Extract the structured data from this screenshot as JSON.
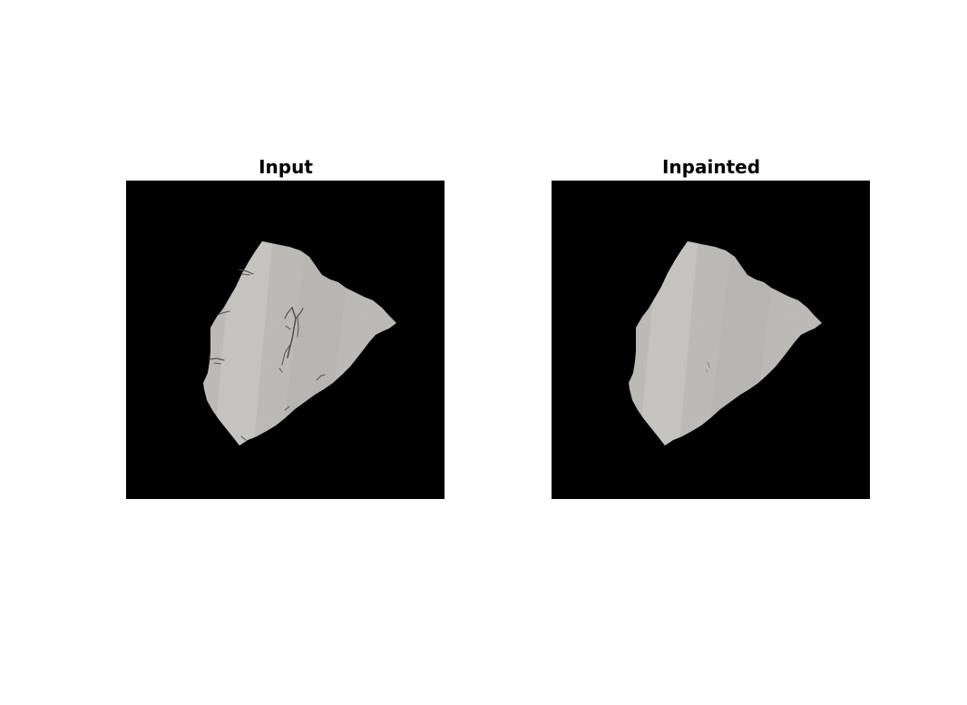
{
  "figure": {
    "panels": [
      {
        "title": "Input"
      },
      {
        "title": "Inpainted"
      }
    ],
    "colors": {
      "background": "#ffffff",
      "image_background": "#000000",
      "fragment_fill": "#bcbab6",
      "fragment_stripe": "#c9c7c3",
      "crack_marks": "#55524f"
    }
  }
}
